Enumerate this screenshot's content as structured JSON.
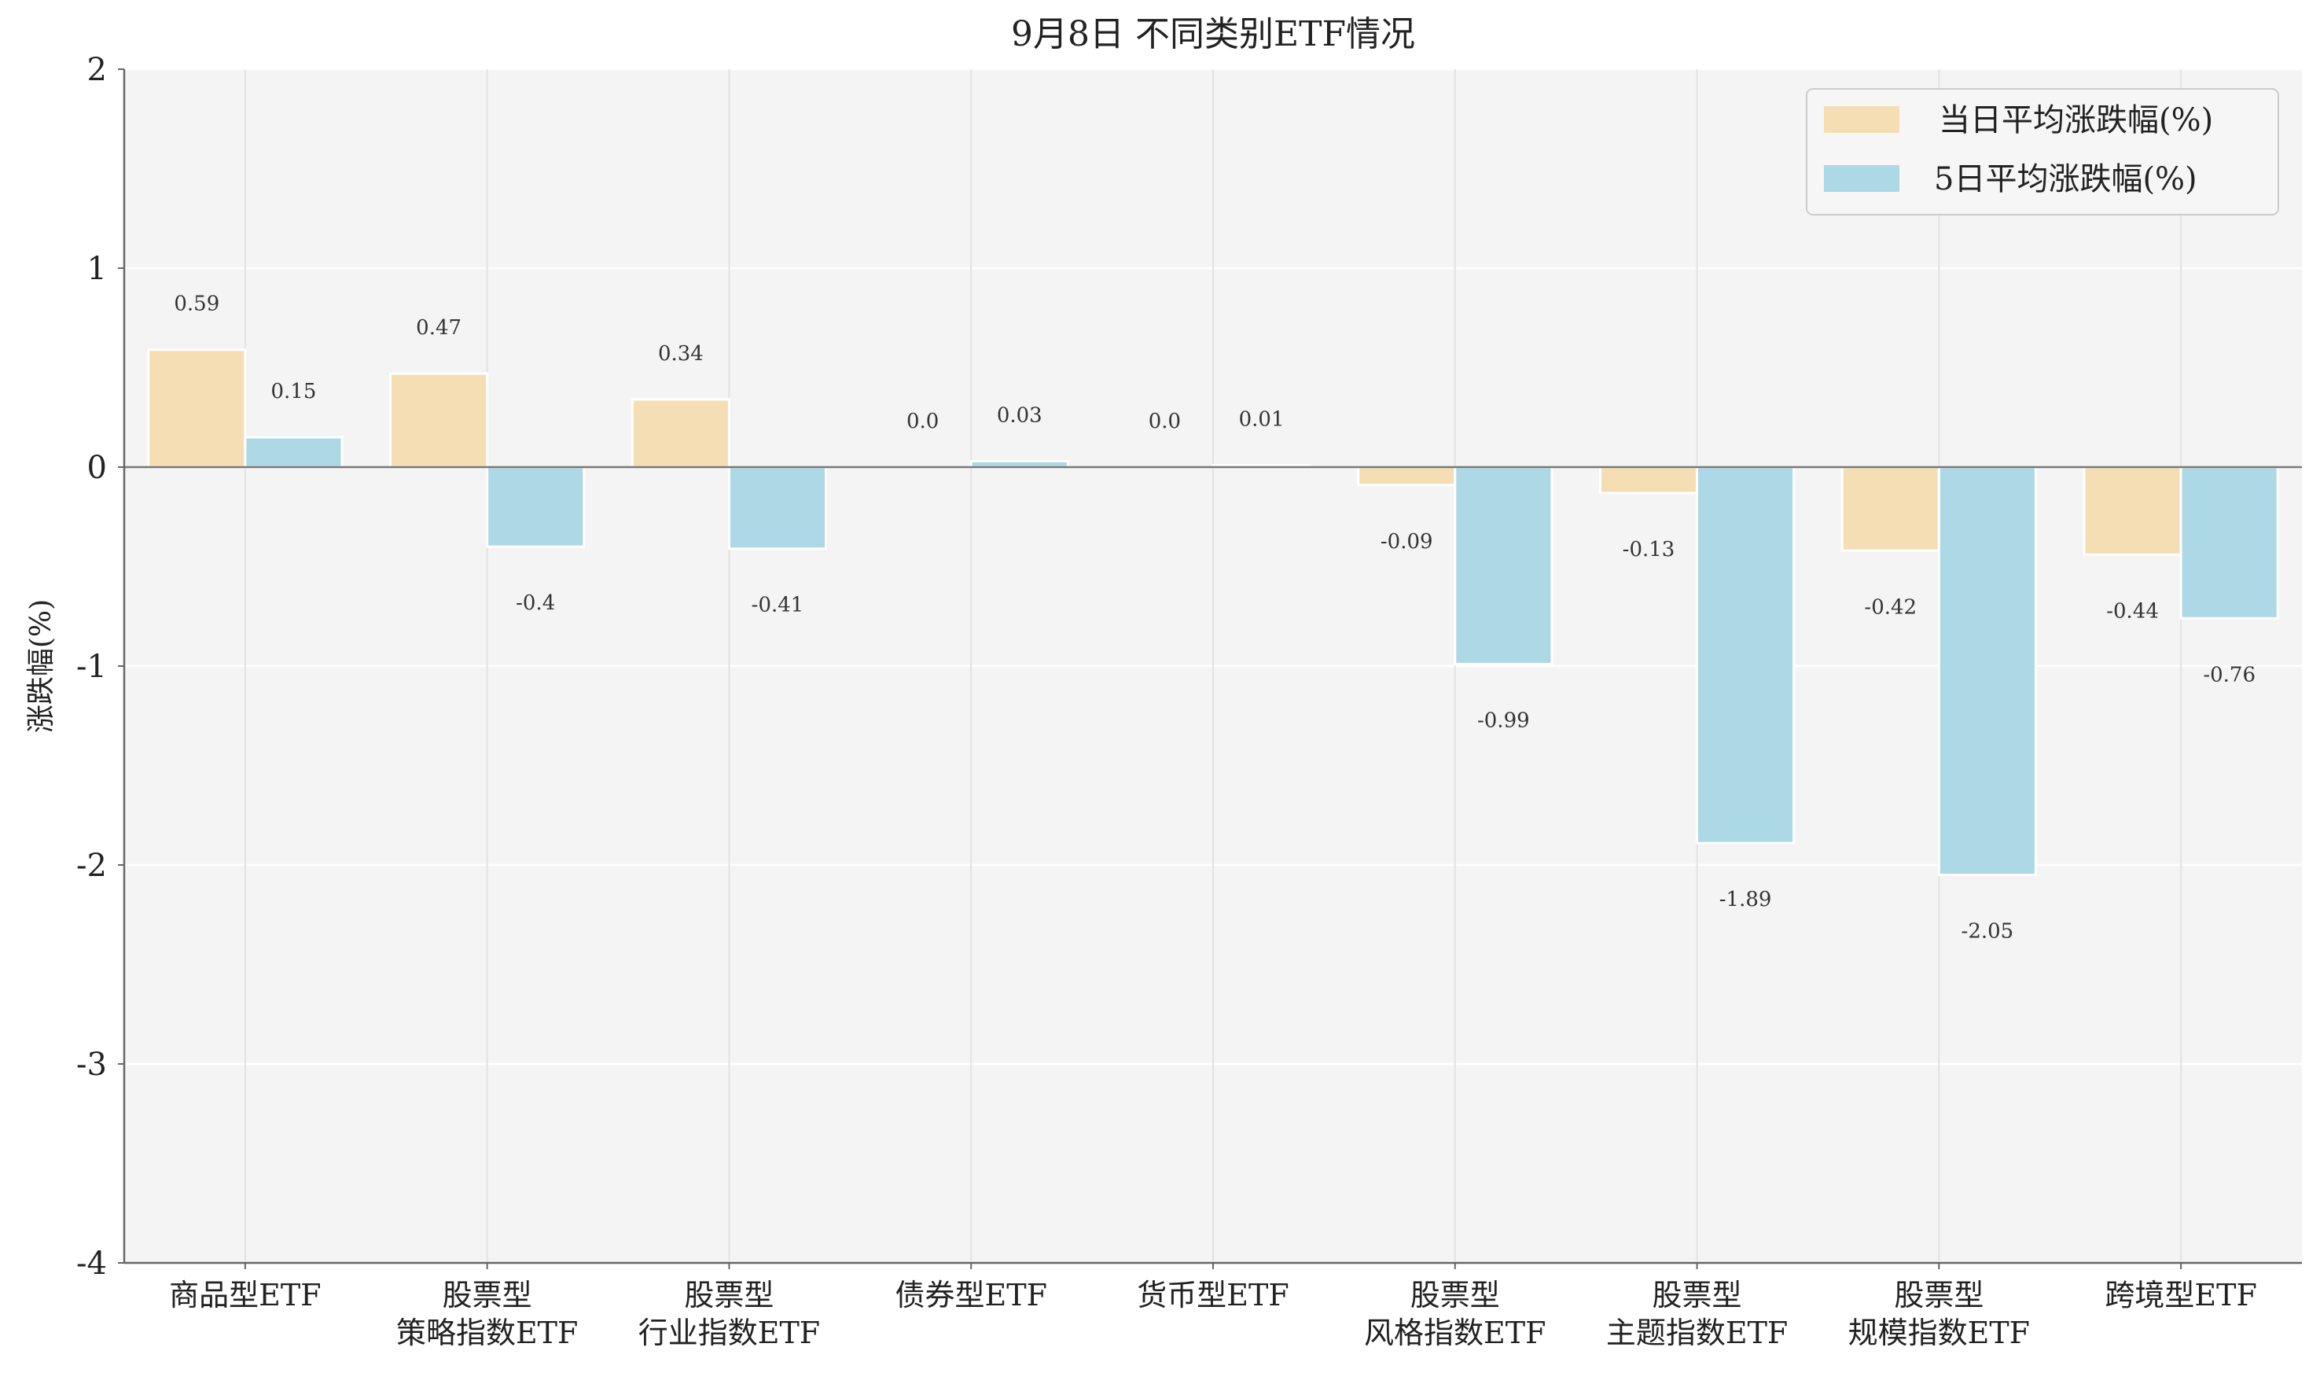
{
  "chart_data": {
    "type": "bar",
    "title": "9月8日 不同类别ETF情况",
    "xlabel": "",
    "ylabel": "涨跌幅(%)",
    "ylim": [
      -4,
      2
    ],
    "yticks": [
      "2",
      "1",
      "0",
      "-1",
      "-2",
      "-3",
      "-4"
    ],
    "grid": true,
    "legend_position": "top-right",
    "categories": [
      [
        "商品型ETF"
      ],
      [
        "股票型",
        "策略指数ETF"
      ],
      [
        "股票型",
        "行业指数ETF"
      ],
      [
        "债券型ETF"
      ],
      [
        "货币型ETF"
      ],
      [
        "股票型",
        "风格指数ETF"
      ],
      [
        "股票型",
        "主题指数ETF"
      ],
      [
        "股票型",
        "规模指数ETF"
      ],
      [
        "跨境型ETF"
      ]
    ],
    "series": [
      {
        "name": "当日平均涨跌幅(%)",
        "color": "#f5deb3",
        "values": [
          0.59,
          0.47,
          0.34,
          0.0,
          0.0,
          -0.09,
          -0.13,
          -0.42,
          -0.44
        ],
        "labels": [
          "0.59",
          "0.47",
          "0.34",
          "0.0",
          "0.0",
          "-0.09",
          "-0.13",
          "-0.42",
          "-0.44"
        ]
      },
      {
        "name": "5日平均涨跌幅(%)",
        "color": "#add8e6",
        "values": [
          0.15,
          -0.4,
          -0.41,
          0.03,
          0.01,
          -0.99,
          -1.89,
          -2.05,
          -0.76
        ],
        "labels": [
          "0.15",
          "-0.4",
          "-0.41",
          "0.03",
          "0.01",
          "-0.99",
          "-1.89",
          "-2.05",
          "-0.76"
        ]
      }
    ]
  }
}
